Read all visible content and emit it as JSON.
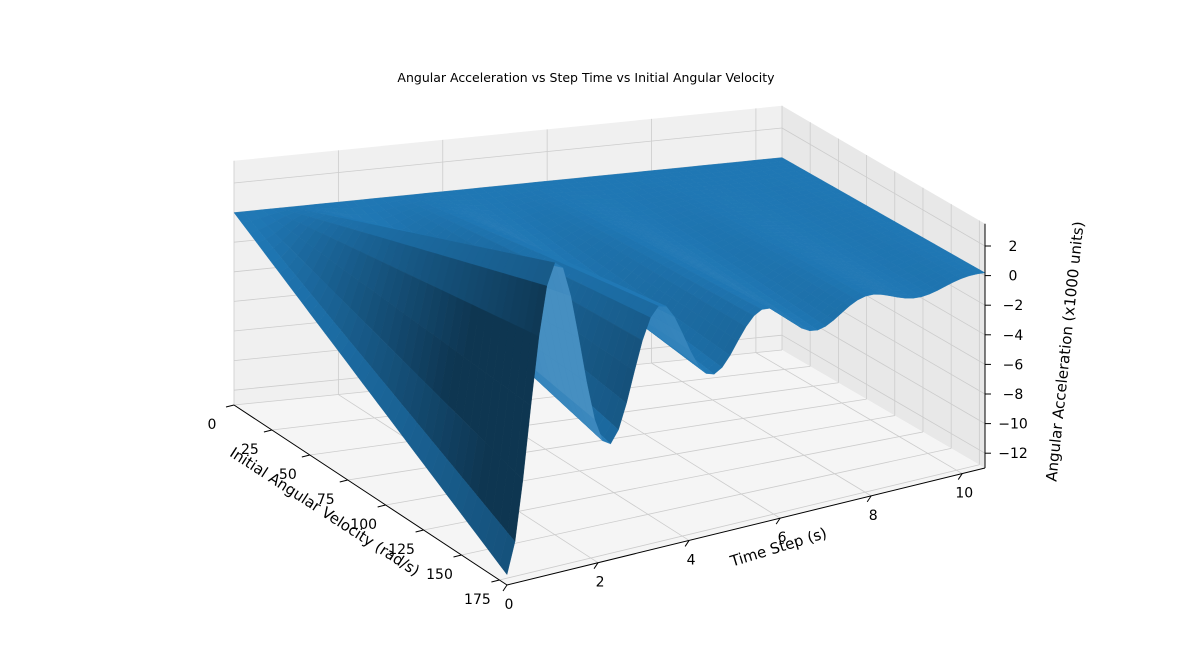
{
  "colors": {
    "surface": "#1f77b4",
    "pane": "#f2f2f2",
    "grid": "#cccccc",
    "axis": "#000000"
  },
  "chart_data": {
    "type": "surface3d",
    "title": "Angular Acceleration vs Step Time vs Initial Angular Velocity",
    "xlabel": "Time Step (s)",
    "ylabel": "Initial Angular Velocity (rad/s)",
    "zlabel": "Angular Acceleration (x1000 units)",
    "xlim": [
      0,
      10.5
    ],
    "ylim": [
      0,
      180
    ],
    "zlim": [
      -13,
      3.5
    ],
    "x_ticks": [
      0,
      2,
      4,
      6,
      8,
      10
    ],
    "y_ticks": [
      0,
      25,
      50,
      75,
      100,
      125,
      150,
      175
    ],
    "z_ticks": [
      -12,
      -10,
      -8,
      -6,
      -4,
      -2,
      0,
      2
    ],
    "x_tick_labels": [
      "0",
      "2",
      "4",
      "6",
      "8",
      "10"
    ],
    "y_tick_labels": [
      "0",
      "25",
      "50",
      "75",
      "100",
      "125",
      "150",
      "175"
    ],
    "z_tick_labels": [
      "−12",
      "−10",
      "−8",
      "−6",
      "−4",
      "−2",
      "0",
      "2"
    ],
    "grid": true,
    "series": [
      {
        "description": "damped oscillation of angular acceleration over time, amplitude growing with initial angular velocity",
        "samples_at_max_velocity": [
          {
            "x": 0,
            "z": -12.3
          },
          {
            "x": 1.3,
            "z": 0.4
          },
          {
            "x": 2.3,
            "z": -4.6
          },
          {
            "x": 3.5,
            "z": 0.2
          },
          {
            "x": 4.7,
            "z": -2.5
          },
          {
            "x": 5.8,
            "z": 0.0
          },
          {
            "x": 6.9,
            "z": -1.5
          },
          {
            "x": 8.0,
            "z": -0.3
          },
          {
            "x": 9.0,
            "z": -0.9
          },
          {
            "x": 10.0,
            "z": -0.4
          }
        ],
        "samples_at_zero_velocity": [
          {
            "x": 0,
            "z": 0.0
          },
          {
            "x": 10.0,
            "z": 0.0
          }
        ]
      }
    ]
  }
}
